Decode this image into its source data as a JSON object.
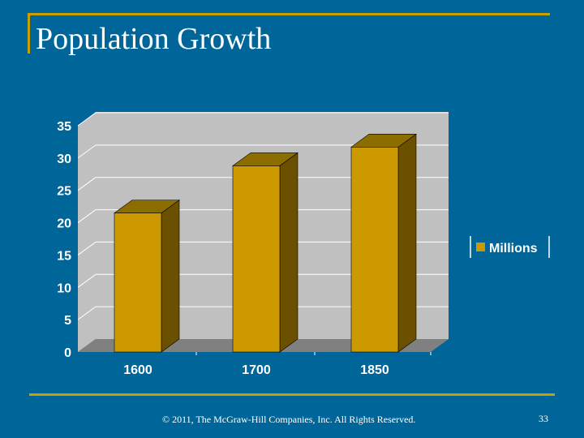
{
  "slide": {
    "title": "Population Growth",
    "footer": "© 2011, The McGraw-Hill Companies, Inc. All Rights Reserved.",
    "page_number": "33"
  },
  "colors": {
    "background": "#006699",
    "accent_line": "#C8A000",
    "bar_front": "#CC9900",
    "bar_side": "#6B5000",
    "bar_top": "#8C6D00",
    "plot_back": "#C0C0C0",
    "plot_floor": "#808080",
    "grid": "#FFFFFF",
    "axis_text": "#FFFFFF"
  },
  "chart_data": {
    "type": "bar",
    "title": "",
    "xlabel": "",
    "ylabel": "",
    "categories": [
      "1600",
      "1700",
      "1850"
    ],
    "series": [
      {
        "name": "Millions",
        "values": [
          21.5,
          28.8,
          31.7
        ]
      }
    ],
    "ylim": [
      0,
      35
    ],
    "yticks": [
      "0",
      "5",
      "10",
      "15",
      "20",
      "25",
      "30",
      "35"
    ],
    "ytick_values": [
      0,
      5,
      10,
      15,
      20,
      25,
      30,
      35
    ],
    "grid": true,
    "legend": "right",
    "style": "3d-column"
  }
}
